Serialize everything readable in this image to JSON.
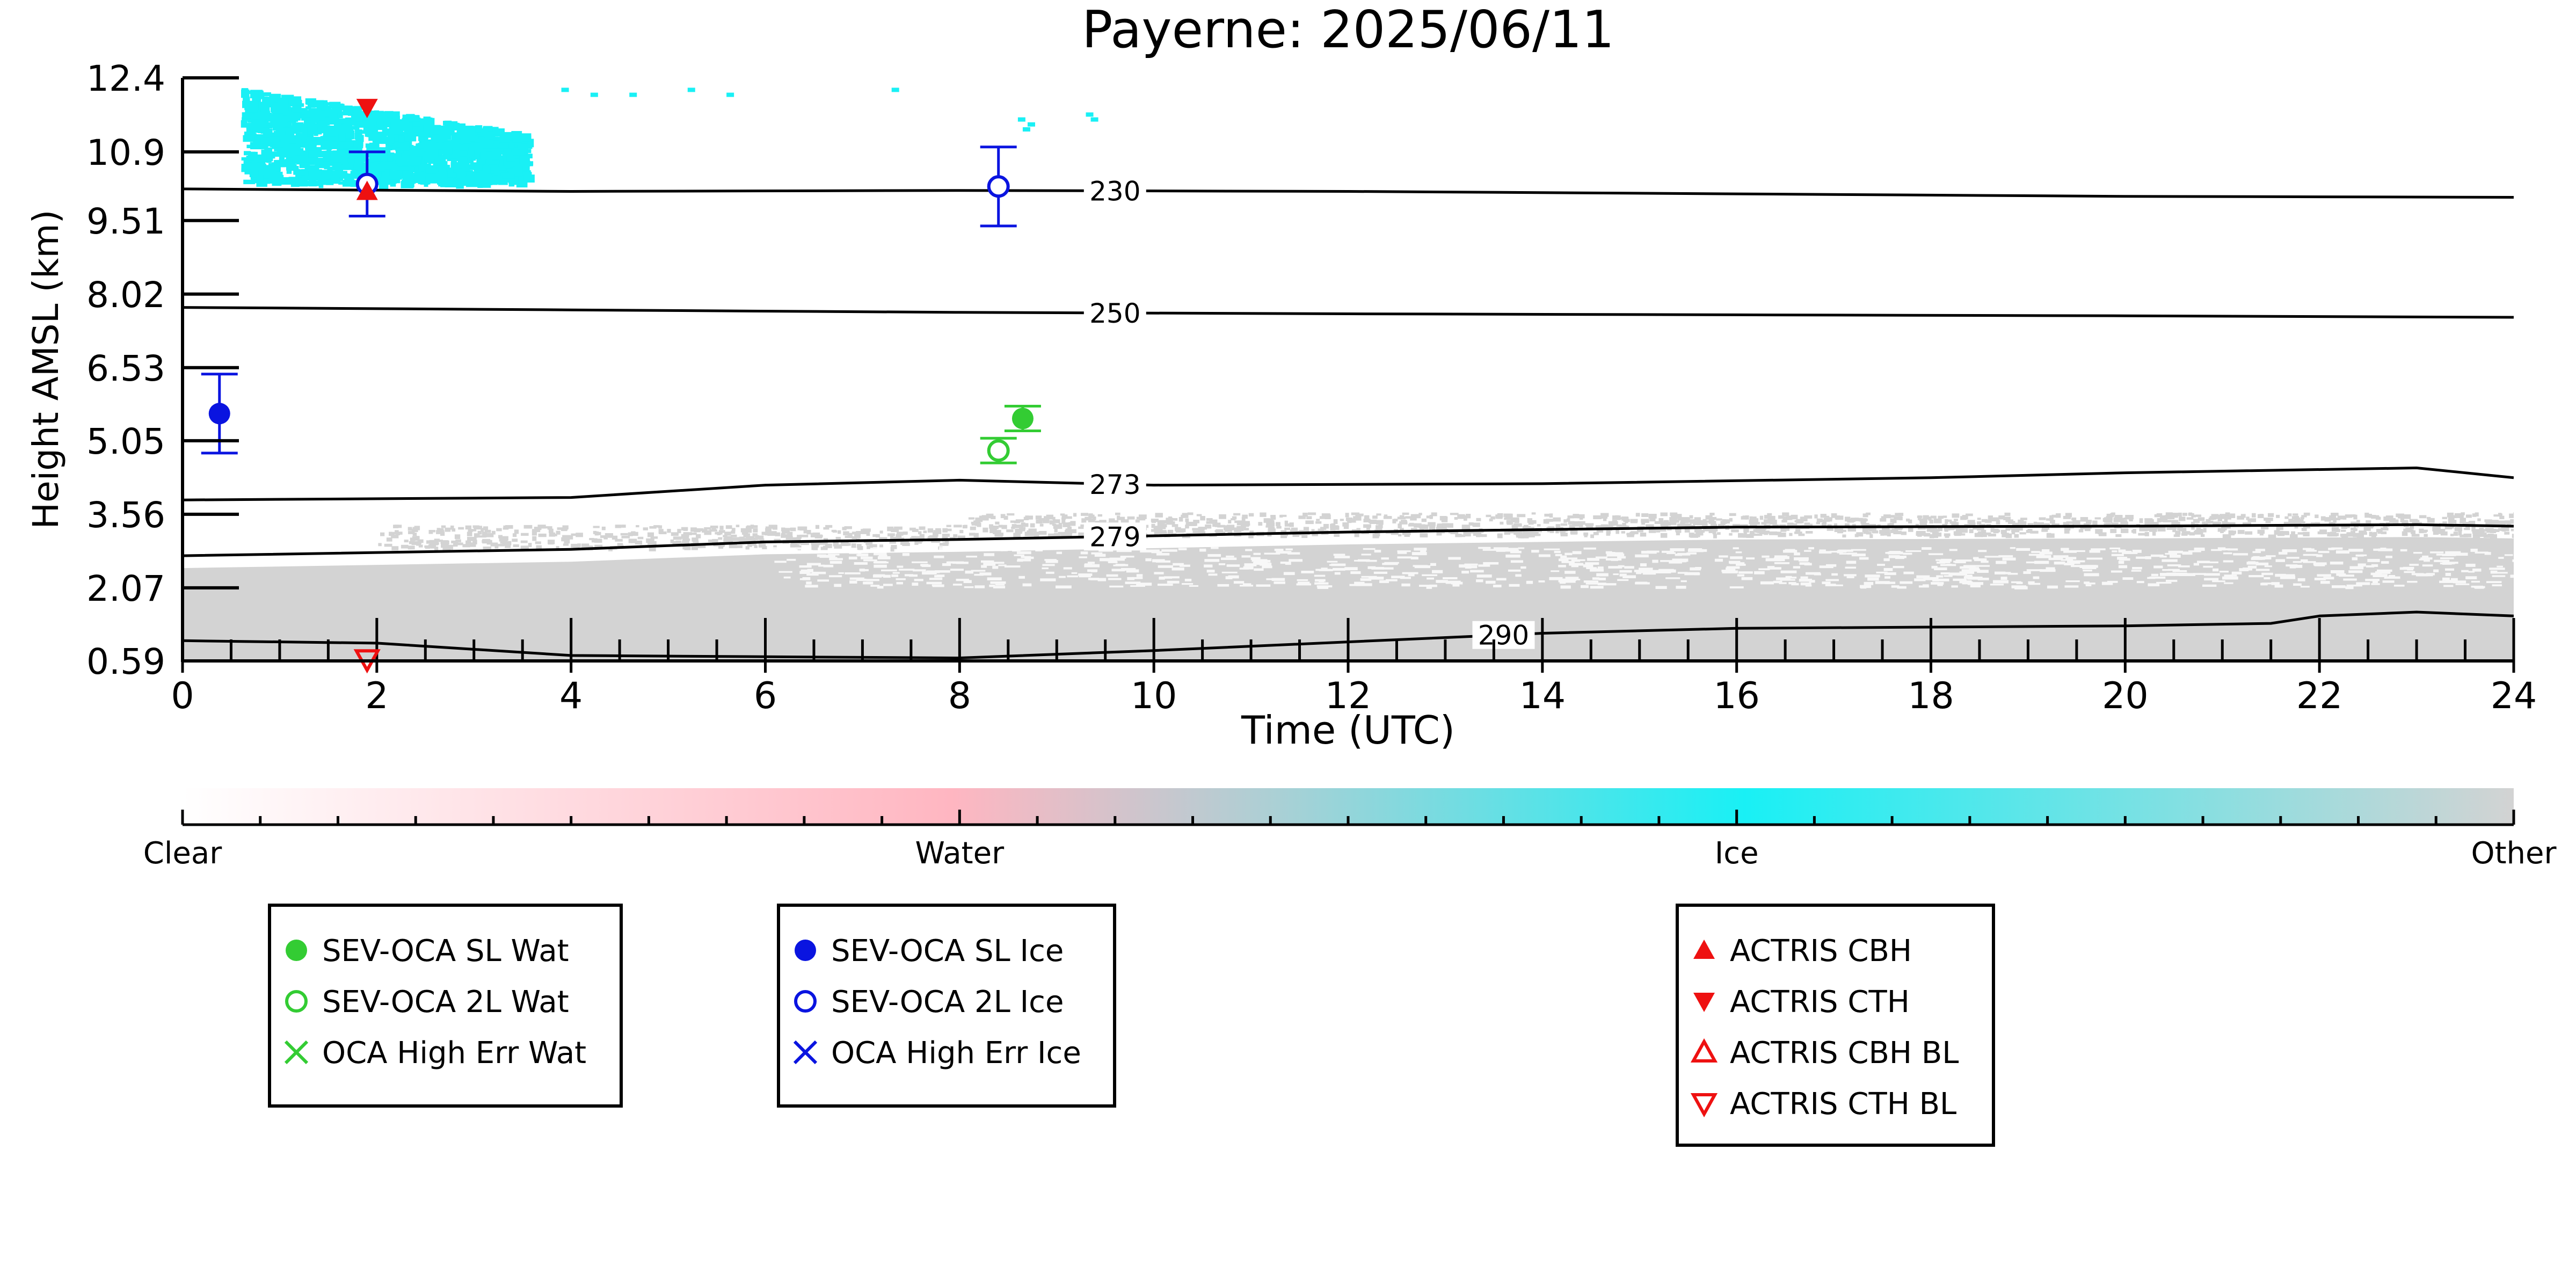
{
  "chart_data": {
    "type": "scatter",
    "title": "Payerne: 2025/06/11",
    "xlabel": "Time (UTC)",
    "ylabel": "Height AMSL (km)",
    "xlim": [
      0,
      24
    ],
    "ylim": [
      0.59,
      12.4
    ],
    "xticks": [
      "0",
      "2",
      "4",
      "6",
      "8",
      "10",
      "12",
      "14",
      "16",
      "18",
      "20",
      "22",
      "24"
    ],
    "yticks": [
      "0.59",
      "2.07",
      "3.56",
      "5.05",
      "6.53",
      "8.02",
      "9.51",
      "10.9",
      "12.4"
    ],
    "ytick_values": [
      0.59,
      2.07,
      3.56,
      5.05,
      6.53,
      8.02,
      9.51,
      10.9,
      12.4
    ],
    "temperature_contours": [
      {
        "label": "230",
        "label_x": 9.6,
        "points": [
          [
            0,
            10.15
          ],
          [
            4,
            10.1
          ],
          [
            8,
            10.12
          ],
          [
            12,
            10.1
          ],
          [
            16,
            10.05
          ],
          [
            20,
            10.0
          ],
          [
            24,
            9.98
          ]
        ]
      },
      {
        "label": "250",
        "label_x": 9.6,
        "points": [
          [
            0,
            7.75
          ],
          [
            4,
            7.7
          ],
          [
            8,
            7.65
          ],
          [
            12,
            7.62
          ],
          [
            16,
            7.6
          ],
          [
            20,
            7.58
          ],
          [
            24,
            7.55
          ]
        ]
      },
      {
        "label": "273",
        "label_x": 9.6,
        "points": [
          [
            0,
            3.85
          ],
          [
            4,
            3.9
          ],
          [
            6,
            4.15
          ],
          [
            8,
            4.25
          ],
          [
            10,
            4.15
          ],
          [
            14,
            4.18
          ],
          [
            18,
            4.3
          ],
          [
            20,
            4.4
          ],
          [
            23,
            4.5
          ],
          [
            24,
            4.3
          ]
        ]
      },
      {
        "label": "279",
        "label_x": 9.6,
        "points": [
          [
            0,
            2.72
          ],
          [
            4,
            2.85
          ],
          [
            6,
            3.0
          ],
          [
            8,
            3.05
          ],
          [
            12,
            3.2
          ],
          [
            16,
            3.3
          ],
          [
            20,
            3.32
          ],
          [
            23,
            3.35
          ],
          [
            24,
            3.32
          ]
        ]
      },
      {
        "label": "290",
        "label_x": 13.6,
        "points": [
          [
            0,
            1.0
          ],
          [
            2,
            0.95
          ],
          [
            4,
            0.7
          ],
          [
            8,
            0.65
          ],
          [
            10,
            0.8
          ],
          [
            14,
            1.15
          ],
          [
            16,
            1.25
          ],
          [
            20,
            1.3
          ],
          [
            21.5,
            1.35
          ],
          [
            22,
            1.5
          ],
          [
            23,
            1.58
          ],
          [
            24,
            1.5
          ]
        ]
      }
    ],
    "cloud_regions": [
      {
        "class": "Ice",
        "color": "#19f0f5",
        "x_range": [
          0.6,
          3.5
        ],
        "y_range": [
          10.3,
          12.2
        ]
      },
      {
        "class": "Other",
        "color": "#d3d3d3",
        "x_range": [
          0,
          24
        ],
        "y_range": [
          0.59,
          3.0
        ]
      }
    ],
    "series": [
      {
        "name": "SEV-OCA SL Wat",
        "color": "#33cc33",
        "marker": "filled-circle",
        "points": [
          {
            "x": 8.65,
            "y": 5.5,
            "err": 0.25
          }
        ]
      },
      {
        "name": "SEV-OCA 2L Wat",
        "color": "#33cc33",
        "marker": "open-circle",
        "points": [
          {
            "x": 8.4,
            "y": 4.85,
            "err": 0.25
          }
        ]
      },
      {
        "name": "OCA High Err Wat",
        "color": "#33cc33",
        "marker": "x",
        "points": []
      },
      {
        "name": "SEV-OCA SL Ice",
        "color": "#0a14e0",
        "marker": "filled-circle",
        "points": [
          {
            "x": 0.38,
            "y": 5.6,
            "err": 0.8
          }
        ]
      },
      {
        "name": "SEV-OCA 2L Ice",
        "color": "#0a14e0",
        "marker": "open-circle",
        "points": [
          {
            "x": 1.9,
            "y": 10.25,
            "err": 0.65
          },
          {
            "x": 8.4,
            "y": 10.2,
            "err": 0.8
          }
        ]
      },
      {
        "name": "OCA High Err Ice",
        "color": "#0a14e0",
        "marker": "x",
        "points": []
      },
      {
        "name": "ACTRIS CBH",
        "color": "#ee1111",
        "marker": "triangle-up",
        "points": [
          {
            "x": 1.9,
            "y": 10.1
          }
        ]
      },
      {
        "name": "ACTRIS CTH",
        "color": "#ee1111",
        "marker": "triangle-down",
        "points": [
          {
            "x": 1.9,
            "y": 11.8
          }
        ]
      },
      {
        "name": "ACTRIS CBH BL",
        "color": "#ee1111",
        "marker": "open-triangle-up",
        "points": []
      },
      {
        "name": "ACTRIS CTH BL",
        "color": "#ee1111",
        "marker": "open-triangle-down",
        "points": [
          {
            "x": 1.9,
            "y": 0.62
          }
        ]
      }
    ],
    "colorbar": {
      "labels": [
        "Clear",
        "Water",
        "Ice",
        "Other"
      ],
      "colors": [
        "#ffffff",
        "#ffb6c1",
        "#19f0f5",
        "#d3d3d3"
      ]
    },
    "legend_groups": [
      [
        "SEV-OCA SL Wat",
        "SEV-OCA 2L Wat",
        "OCA High Err Wat"
      ],
      [
        "SEV-OCA SL Ice",
        "SEV-OCA 2L Ice",
        "OCA High Err Ice"
      ],
      [
        "ACTRIS CBH",
        "ACTRIS CTH",
        "ACTRIS CBH BL",
        "ACTRIS CTH BL"
      ]
    ]
  }
}
